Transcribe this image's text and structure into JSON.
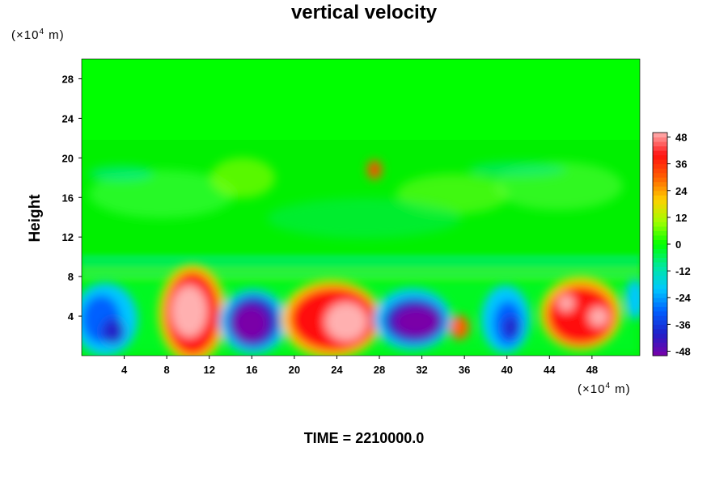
{
  "chart_data": {
    "type": "heatmap",
    "title": "vertical velocity",
    "ylabel": "Height",
    "x_unit_prefix": "(×10",
    "x_unit_exp": "4",
    "x_unit_suffix": " m)",
    "y_unit_prefix": "(×10",
    "y_unit_exp": "4",
    "y_unit_suffix": " m)",
    "xlim": [
      0,
      52.5
    ],
    "ylim": [
      0,
      30
    ],
    "x_ticks": [
      "4",
      "8",
      "12",
      "16",
      "20",
      "24",
      "28",
      "32",
      "36",
      "40",
      "44",
      "48"
    ],
    "y_ticks": [
      "4",
      "8",
      "12",
      "16",
      "20",
      "24",
      "28"
    ],
    "colorbar": {
      "range": [
        -50,
        50
      ],
      "ticks": [
        "48",
        "36",
        "24",
        "12",
        "0",
        "-12",
        "-24",
        "-36",
        "-48"
      ],
      "colors": [
        "#7a00a8",
        "#2020c8",
        "#0060ff",
        "#00c8ff",
        "#00e8a0",
        "#00ff00",
        "#a0ff00",
        "#ffd000",
        "#ff6000",
        "#ff1010",
        "#ffb0b0"
      ]
    },
    "features": [
      {
        "x": 9.8,
        "y": 4.3,
        "value": 50
      },
      {
        "x": 24.3,
        "y": 3.3,
        "value": 50
      },
      {
        "x": 21.0,
        "y": 3.5,
        "value": 35
      },
      {
        "x": 15.5,
        "y": 3.3,
        "value": -50
      },
      {
        "x": 30.7,
        "y": 3.2,
        "value": -50
      },
      {
        "x": 39.5,
        "y": 3.0,
        "value": -40
      },
      {
        "x": 46.0,
        "y": 4.0,
        "value": 36
      },
      {
        "x": 2.3,
        "y": 3.5,
        "value": -35
      },
      {
        "x": 35.0,
        "y": 2.8,
        "value": 38
      },
      {
        "x": 27.0,
        "y": 18.4,
        "value": 40
      }
    ]
  },
  "footer": {
    "time_text": "TIME = 2210000.0"
  }
}
